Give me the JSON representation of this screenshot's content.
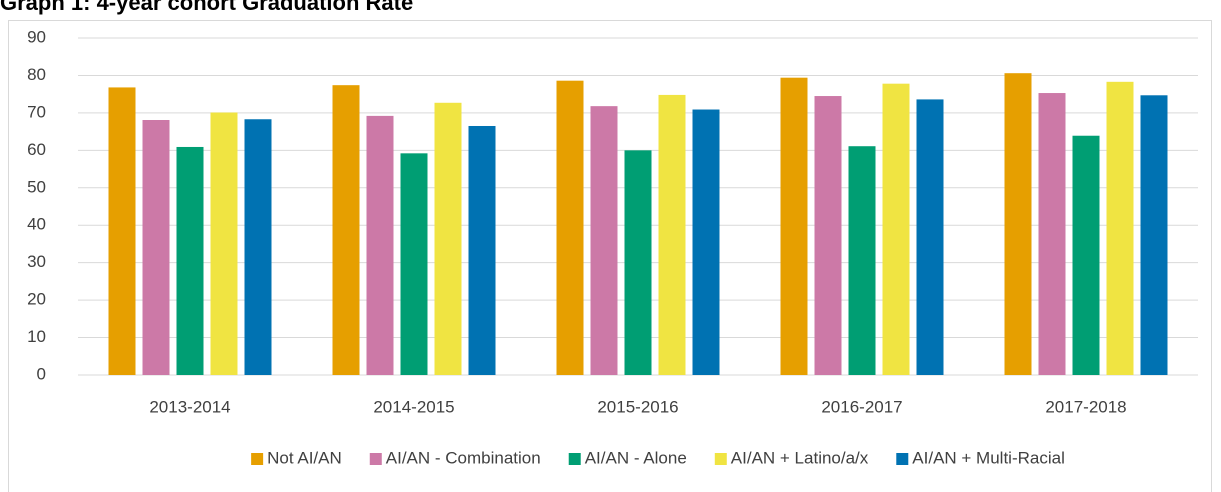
{
  "chart_data": {
    "type": "bar",
    "title": "Graph 1: 4-year cohort Graduation Rate",
    "categories": [
      "2013-2014",
      "2014-2015",
      "2015-2016",
      "2016-2017",
      "2017-2018"
    ],
    "series": [
      {
        "name": "Not AI/AN",
        "color": "#e69f00",
        "values": [
          76.8,
          77.4,
          78.6,
          79.4,
          80.6
        ]
      },
      {
        "name": "AI/AN - Combination",
        "color": "#cc79a7",
        "values": [
          68.1,
          69.2,
          71.8,
          74.5,
          75.3
        ]
      },
      {
        "name": "AI/AN - Alone",
        "color": "#009e73",
        "values": [
          60.9,
          59.2,
          60.0,
          61.1,
          63.9
        ]
      },
      {
        "name": "AI/AN + Latino/a/x",
        "color": "#f0e442",
        "values": [
          70.1,
          72.7,
          74.8,
          77.8,
          78.3
        ]
      },
      {
        "name": "AI/AN + Multi-Racial",
        "color": "#0072b2",
        "values": [
          68.3,
          66.5,
          70.9,
          73.6,
          74.7
        ]
      }
    ],
    "ylim": [
      0,
      90
    ],
    "yticks": [
      0,
      10,
      20,
      30,
      40,
      50,
      60,
      70,
      80,
      90
    ],
    "grid": true,
    "legend": "bottom"
  }
}
